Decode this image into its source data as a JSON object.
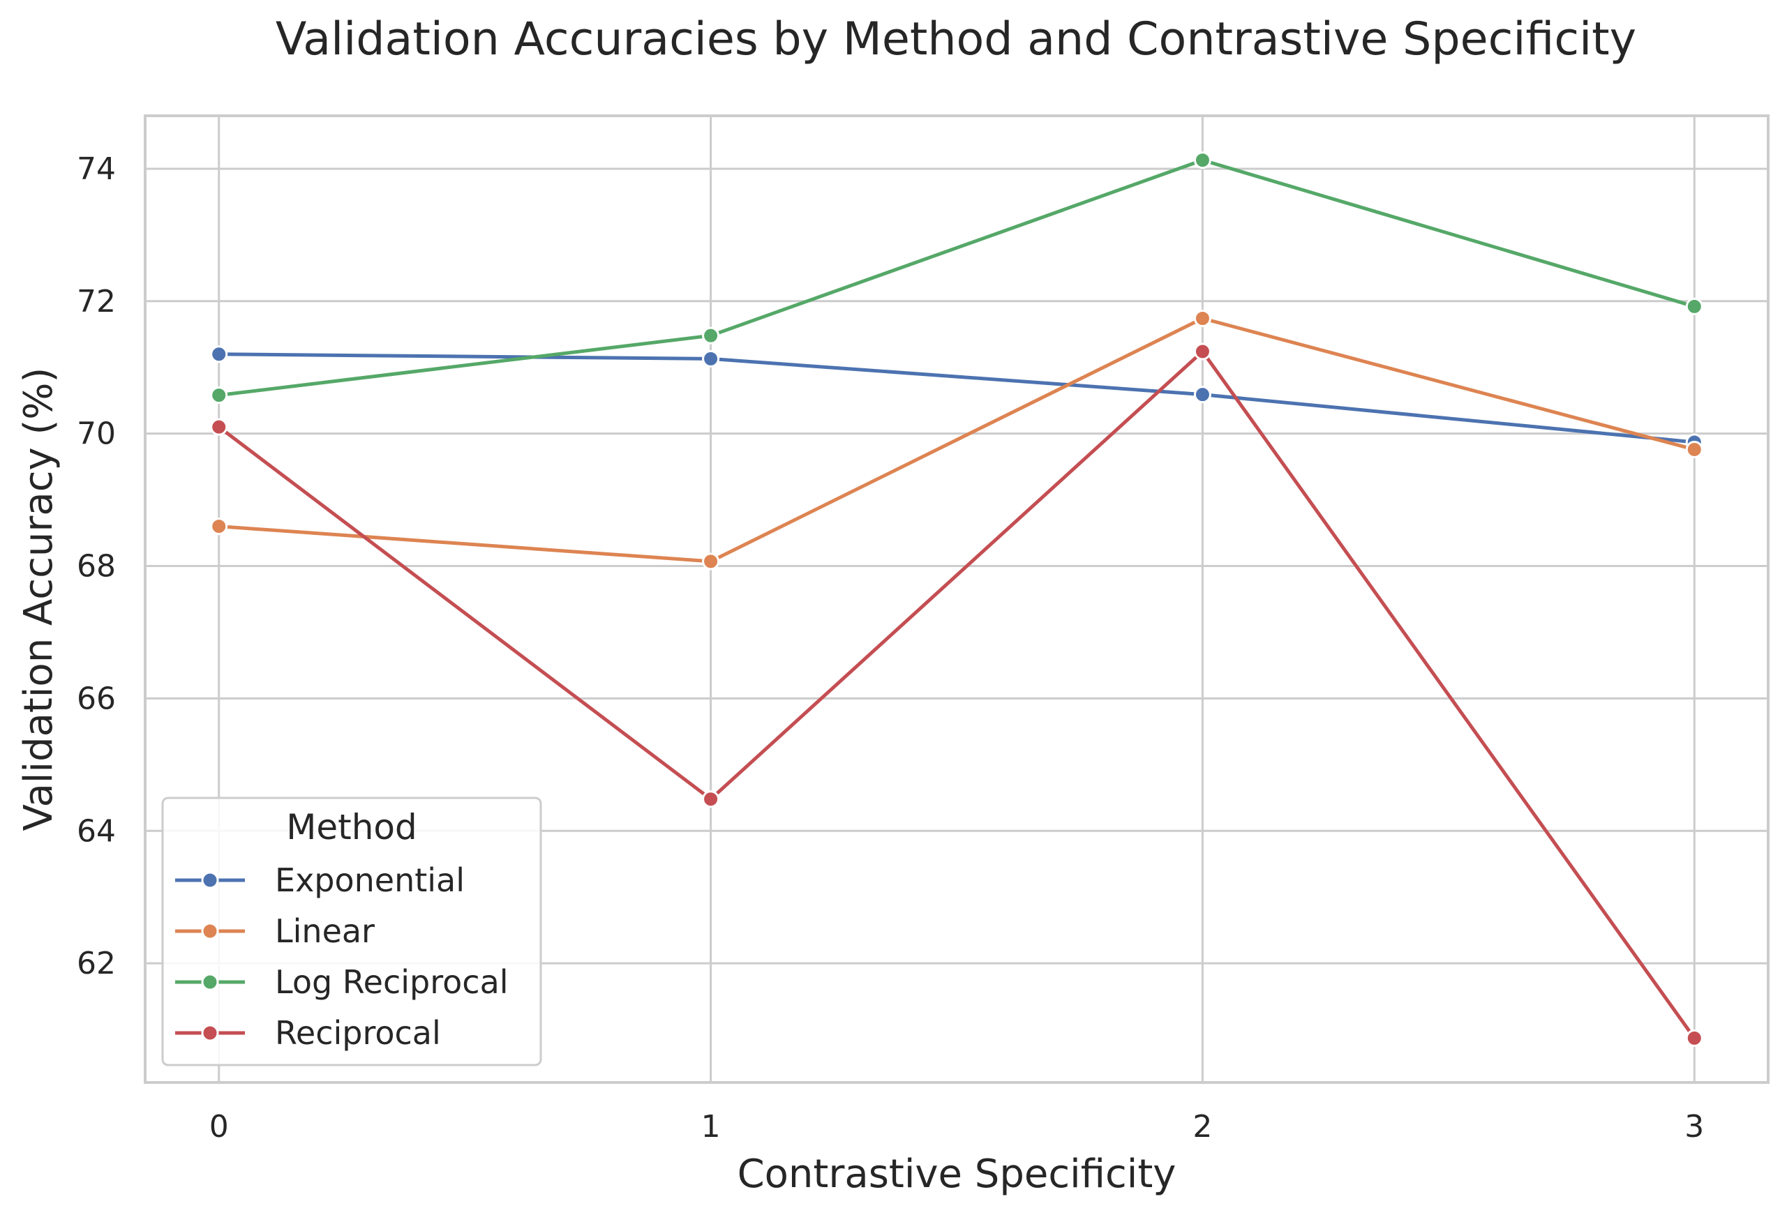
{
  "chart_data": {
    "type": "line",
    "title": "Validation Accuracies by Method and Contrastive Specificity",
    "xlabel": "Contrastive Specificity",
    "ylabel": "Validation Accuracy (%)",
    "x": [
      0,
      1,
      2,
      3
    ],
    "x_ticks": [
      "0",
      "1",
      "2",
      "3"
    ],
    "xlim": [
      -0.15,
      3.15
    ],
    "ylim": [
      60.2,
      74.8
    ],
    "y_ticks": [
      62,
      64,
      66,
      68,
      70,
      72,
      74
    ],
    "grid": true,
    "legend": {
      "title": "Method",
      "placement": "lower-left"
    },
    "series": [
      {
        "name": "Exponential",
        "color": "#4c72b0",
        "values": [
          71.2,
          71.13,
          70.59,
          69.87
        ]
      },
      {
        "name": "Linear",
        "color": "#dd8452",
        "values": [
          68.6,
          68.07,
          71.74,
          69.76
        ]
      },
      {
        "name": "Log Reciprocal",
        "color": "#55a868",
        "values": [
          70.58,
          71.48,
          74.13,
          71.92
        ]
      },
      {
        "name": "Reciprocal",
        "color": "#c44e52",
        "values": [
          70.1,
          64.48,
          71.24,
          60.87
        ]
      }
    ]
  }
}
